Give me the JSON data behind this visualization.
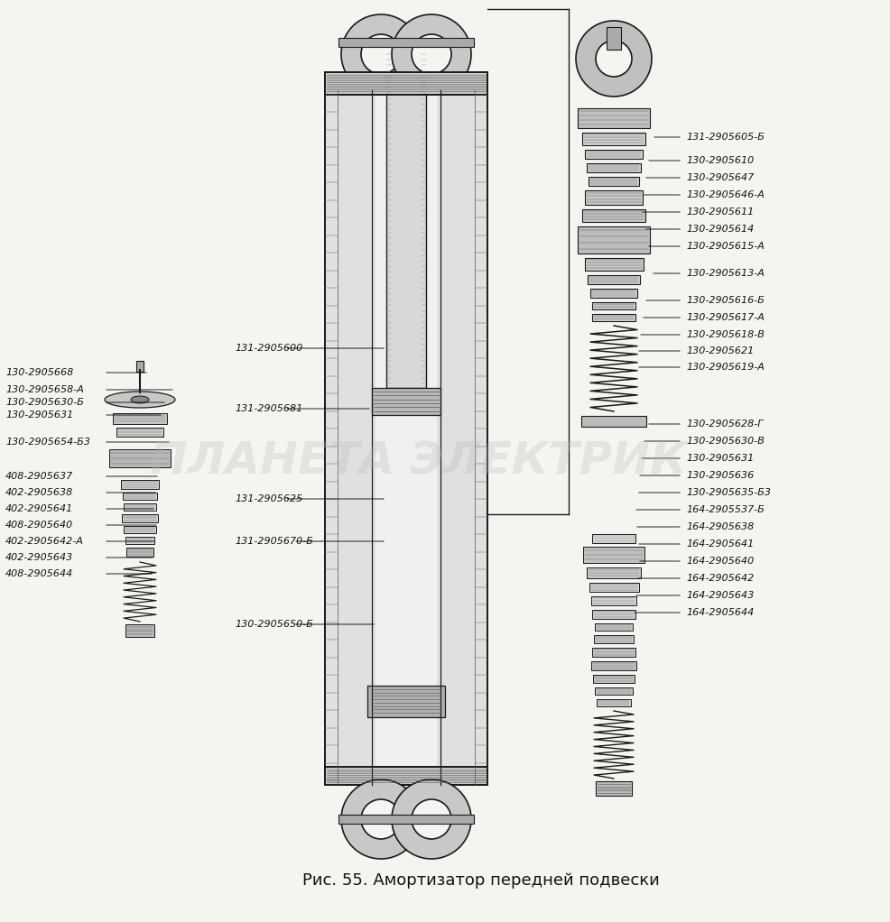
{
  "title": "Рис. 55. Амортизатор передней подвески",
  "title_fontsize": 13,
  "background_color": "#f5f5f0",
  "watermark": "ПЛАНЕТА ЭЛЕКТРИК",
  "fig_width": 9.86,
  "fig_height": 10.22,
  "dpi": 100,
  "labels_right_top": [
    [
      "131-2905605-Б",
      0.152
    ],
    [
      "130-2905610",
      0.178
    ],
    [
      "130-2905647",
      0.197
    ],
    [
      "130-2905646-А",
      0.216
    ],
    [
      "130-2905611",
      0.235
    ],
    [
      "130-2905614",
      0.254
    ],
    [
      "130-2905615-А",
      0.273
    ],
    [
      "130-2905613-А",
      0.303
    ],
    [
      "130-2905616-Б",
      0.333
    ],
    [
      "130-2905617-А",
      0.352
    ],
    [
      "130-2905618-В",
      0.371
    ],
    [
      "130-2905621",
      0.389
    ],
    [
      "130-2905619-А",
      0.407
    ]
  ],
  "labels_right_bottom": [
    [
      "130-2905628-Г",
      0.47
    ],
    [
      "130-2905630-В",
      0.489
    ],
    [
      "130-2905631",
      0.508
    ],
    [
      "130-2905636",
      0.527
    ],
    [
      "130-2905635-Б3",
      0.546
    ],
    [
      "164-2905537-Б",
      0.565
    ],
    [
      "164-2905638",
      0.584
    ],
    [
      "164-2905641",
      0.603
    ],
    [
      "164-2905640",
      0.622
    ],
    [
      "164-2905642",
      0.641
    ],
    [
      "164-2905643",
      0.66
    ],
    [
      "164-2905644",
      0.679
    ]
  ],
  "labels_left": [
    [
      "130-2905668",
      0.398
    ],
    [
      "130-2905658-А",
      0.421
    ],
    [
      "130-2905630-Б",
      0.439
    ],
    [
      "130-2905631",
      0.457
    ],
    [
      "130-2905654-Б3",
      0.492
    ],
    [
      "408-2905637",
      0.53
    ],
    [
      "402-2905638",
      0.549
    ],
    [
      "402-2905641",
      0.568
    ],
    [
      "408-2905640",
      0.587
    ],
    [
      "402-2905642-А",
      0.606
    ],
    [
      "402-2905643",
      0.625
    ],
    [
      "408-2905644",
      0.644
    ]
  ],
  "labels_center": [
    [
      "131-2905600",
      0.386
    ],
    [
      "131-2905681",
      0.453
    ],
    [
      "131-2905625",
      0.553
    ],
    [
      "131-2905670-Б",
      0.6
    ],
    [
      "130-2905650-Б",
      0.692
    ]
  ]
}
